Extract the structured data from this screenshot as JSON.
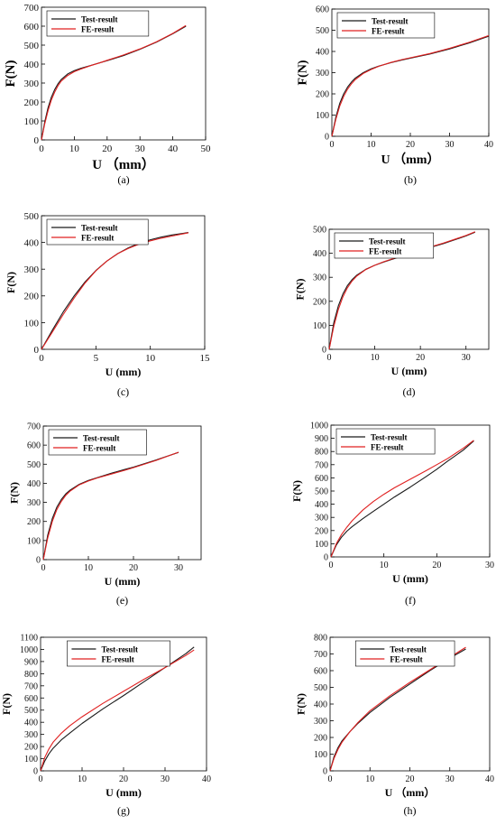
{
  "figure": {
    "legend_labels": [
      "Test-result",
      "FE-result"
    ],
    "colors": {
      "test": "#1a1a1a",
      "fe": "#e02020"
    }
  },
  "chart_data": [
    {
      "type": "line",
      "caption": "(a)",
      "xlabel": "U （mm）",
      "ylabel": "F(N)",
      "xlim": [
        0,
        50
      ],
      "ylim": [
        0,
        700
      ],
      "xticks": [
        0,
        10,
        20,
        30,
        40,
        50
      ],
      "yticks": [
        0,
        100,
        200,
        300,
        400,
        500,
        600,
        700
      ],
      "legend": "top-left",
      "series": [
        {
          "name": "Test-result",
          "x": [
            0,
            1,
            2,
            3,
            4,
            5,
            6,
            8,
            10,
            12,
            15,
            18,
            20,
            25,
            30,
            35,
            40,
            44
          ],
          "y": [
            0,
            95,
            170,
            225,
            265,
            295,
            318,
            348,
            365,
            378,
            393,
            408,
            418,
            445,
            478,
            515,
            560,
            600
          ]
        },
        {
          "name": "FE-result",
          "x": [
            0,
            1,
            2,
            3,
            4,
            5,
            6,
            8,
            10,
            12,
            15,
            18,
            20,
            25,
            30,
            35,
            40,
            44
          ],
          "y": [
            0,
            85,
            155,
            210,
            252,
            285,
            310,
            340,
            360,
            374,
            392,
            408,
            420,
            448,
            480,
            517,
            562,
            604
          ]
        }
      ]
    },
    {
      "type": "line",
      "caption": "(b)",
      "xlabel": "U （mm）",
      "ylabel": "F(N)",
      "xlim": [
        0,
        40
      ],
      "ylim": [
        0,
        600
      ],
      "xticks": [
        0,
        10,
        20,
        30,
        40
      ],
      "yticks": [
        0,
        100,
        200,
        300,
        400,
        500,
        600
      ],
      "legend": "top-left",
      "series": [
        {
          "name": "Test-result",
          "x": [
            0,
            1,
            2,
            3,
            4,
            5,
            6,
            8,
            10,
            12,
            15,
            18,
            20,
            25,
            30,
            35,
            40
          ],
          "y": [
            0,
            90,
            155,
            200,
            232,
            256,
            275,
            300,
            318,
            331,
            347,
            360,
            368,
            388,
            412,
            440,
            472
          ]
        },
        {
          "name": "FE-result",
          "x": [
            0,
            1,
            2,
            3,
            4,
            5,
            6,
            8,
            10,
            12,
            15,
            18,
            20,
            25,
            30,
            35,
            40
          ],
          "y": [
            0,
            80,
            142,
            188,
            222,
            248,
            268,
            296,
            315,
            330,
            348,
            362,
            370,
            390,
            415,
            443,
            475
          ]
        }
      ]
    },
    {
      "type": "line",
      "caption": "(c)",
      "xlabel": "U (mm)",
      "ylabel": "F(N)",
      "xlim": [
        0,
        15
      ],
      "ylim": [
        0,
        500
      ],
      "xticks": [
        0,
        5,
        10,
        15
      ],
      "yticks": [
        0,
        100,
        200,
        300,
        400,
        500
      ],
      "legend": "top-left",
      "series": [
        {
          "name": "Test-result",
          "x": [
            0,
            1,
            2,
            3,
            4,
            5,
            6,
            7,
            8,
            9,
            10,
            11,
            12,
            13,
            13.5
          ],
          "y": [
            0,
            72,
            140,
            200,
            252,
            295,
            330,
            358,
            380,
            397,
            410,
            420,
            428,
            434,
            437
          ]
        },
        {
          "name": "FE-result",
          "x": [
            0,
            1,
            2,
            3,
            4,
            5,
            6,
            7,
            8,
            9,
            10,
            11,
            12,
            13,
            13.5
          ],
          "y": [
            0,
            65,
            130,
            192,
            248,
            294,
            330,
            358,
            378,
            394,
            406,
            416,
            424,
            432,
            436
          ]
        }
      ]
    },
    {
      "type": "line",
      "caption": "(d)",
      "xlabel": "U  (mm)",
      "ylabel": "F(N)",
      "xlim": [
        0,
        35
      ],
      "ylim": [
        0,
        500
      ],
      "xticks": [
        0,
        10,
        20,
        30
      ],
      "yticks": [
        0,
        100,
        200,
        300,
        400,
        500
      ],
      "legend": "top-left",
      "series": [
        {
          "name": "Test-result",
          "x": [
            0,
            1,
            2,
            3,
            4,
            5,
            6,
            8,
            10,
            12,
            15,
            18,
            20,
            25,
            30,
            32
          ],
          "y": [
            0,
            110,
            180,
            230,
            265,
            290,
            308,
            333,
            350,
            364,
            382,
            400,
            412,
            440,
            472,
            488
          ]
        },
        {
          "name": "FE-result",
          "x": [
            0,
            1,
            2,
            3,
            4,
            5,
            6,
            8,
            10,
            12,
            15,
            18,
            20,
            25,
            30,
            32
          ],
          "y": [
            0,
            95,
            165,
            218,
            256,
            284,
            304,
            332,
            350,
            365,
            384,
            402,
            414,
            442,
            474,
            490
          ]
        }
      ]
    },
    {
      "type": "line",
      "caption": "(e)",
      "xlabel": "U  (mm)",
      "ylabel": "F(N)",
      "xlim": [
        0,
        35
      ],
      "ylim": [
        0,
        700
      ],
      "xticks": [
        0,
        10,
        20,
        30
      ],
      "yticks": [
        0,
        100,
        200,
        300,
        400,
        500,
        600,
        700
      ],
      "legend": "top-left",
      "series": [
        {
          "name": "Test-result",
          "x": [
            0,
            1,
            2,
            3,
            4,
            5,
            6,
            8,
            10,
            12,
            15,
            18,
            20,
            25,
            30
          ],
          "y": [
            0,
            130,
            215,
            275,
            315,
            345,
            365,
            395,
            415,
            430,
            452,
            472,
            485,
            522,
            562
          ]
        },
        {
          "name": "FE-result",
          "x": [
            0,
            1,
            2,
            3,
            4,
            5,
            6,
            8,
            10,
            12,
            15,
            18,
            20,
            25,
            30
          ],
          "y": [
            0,
            115,
            200,
            262,
            305,
            337,
            360,
            392,
            412,
            428,
            448,
            468,
            482,
            520,
            563
          ]
        }
      ]
    },
    {
      "type": "line",
      "caption": "(f)",
      "xlabel": "U  (mm)",
      "ylabel": "F(N)",
      "xlim": [
        0,
        30
      ],
      "ylim": [
        0,
        1000
      ],
      "xticks": [
        0,
        10,
        20,
        30
      ],
      "yticks": [
        0,
        100,
        200,
        300,
        400,
        500,
        600,
        700,
        800,
        900,
        1000
      ],
      "legend": "top-left",
      "series": [
        {
          "name": "Test-result",
          "x": [
            0,
            1,
            2,
            3,
            4,
            6,
            8,
            10,
            12,
            15,
            18,
            20,
            22,
            25,
            27
          ],
          "y": [
            0,
            90,
            150,
            195,
            230,
            290,
            345,
            400,
            455,
            530,
            610,
            665,
            725,
            810,
            880
          ]
        },
        {
          "name": "FE-result",
          "x": [
            0,
            1,
            2,
            3,
            4,
            6,
            8,
            10,
            12,
            15,
            18,
            20,
            22,
            25,
            27
          ],
          "y": [
            0,
            100,
            170,
            225,
            275,
            355,
            420,
            475,
            525,
            590,
            655,
            700,
            745,
            825,
            885
          ]
        }
      ]
    },
    {
      "type": "line",
      "caption": "(g)",
      "xlabel": "U  (mm)",
      "ylabel": "F(N)",
      "xlim": [
        0,
        40
      ],
      "ylim": [
        0,
        1100
      ],
      "xticks": [
        0,
        10,
        20,
        30,
        40
      ],
      "yticks": [
        0,
        100,
        200,
        300,
        400,
        500,
        600,
        700,
        800,
        900,
        1000,
        1100
      ],
      "legend": "top-center",
      "series": [
        {
          "name": "Test-result",
          "x": [
            0,
            1,
            2,
            3,
            5,
            7,
            10,
            15,
            20,
            25,
            30,
            35,
            37
          ],
          "y": [
            0,
            80,
            140,
            185,
            255,
            310,
            390,
            510,
            620,
            735,
            850,
            965,
            1020
          ]
        },
        {
          "name": "FE-result",
          "x": [
            0,
            1,
            2,
            3,
            5,
            7,
            10,
            15,
            20,
            25,
            30,
            35,
            37
          ],
          "y": [
            0,
            110,
            180,
            235,
            310,
            370,
            445,
            555,
            655,
            755,
            850,
            950,
            995
          ]
        }
      ]
    },
    {
      "type": "line",
      "caption": "(h)",
      "xlabel": "U （mm）",
      "ylabel": "F(N)",
      "xlim": [
        0,
        40
      ],
      "ylim": [
        0,
        800
      ],
      "xticks": [
        0,
        10,
        20,
        30,
        40
      ],
      "yticks": [
        0,
        100,
        200,
        300,
        400,
        500,
        600,
        700,
        800
      ],
      "legend": "top-center",
      "series": [
        {
          "name": "Test-result",
          "x": [
            0,
            1,
            2,
            3,
            5,
            7,
            10,
            15,
            20,
            25,
            30,
            34
          ],
          "y": [
            0,
            85,
            140,
            180,
            235,
            285,
            350,
            440,
            520,
            600,
            675,
            730
          ]
        },
        {
          "name": "FE-result",
          "x": [
            0,
            1,
            2,
            3,
            5,
            7,
            10,
            15,
            20,
            25,
            30,
            34
          ],
          "y": [
            0,
            75,
            130,
            172,
            235,
            290,
            360,
            450,
            530,
            605,
            680,
            740
          ]
        }
      ]
    }
  ]
}
